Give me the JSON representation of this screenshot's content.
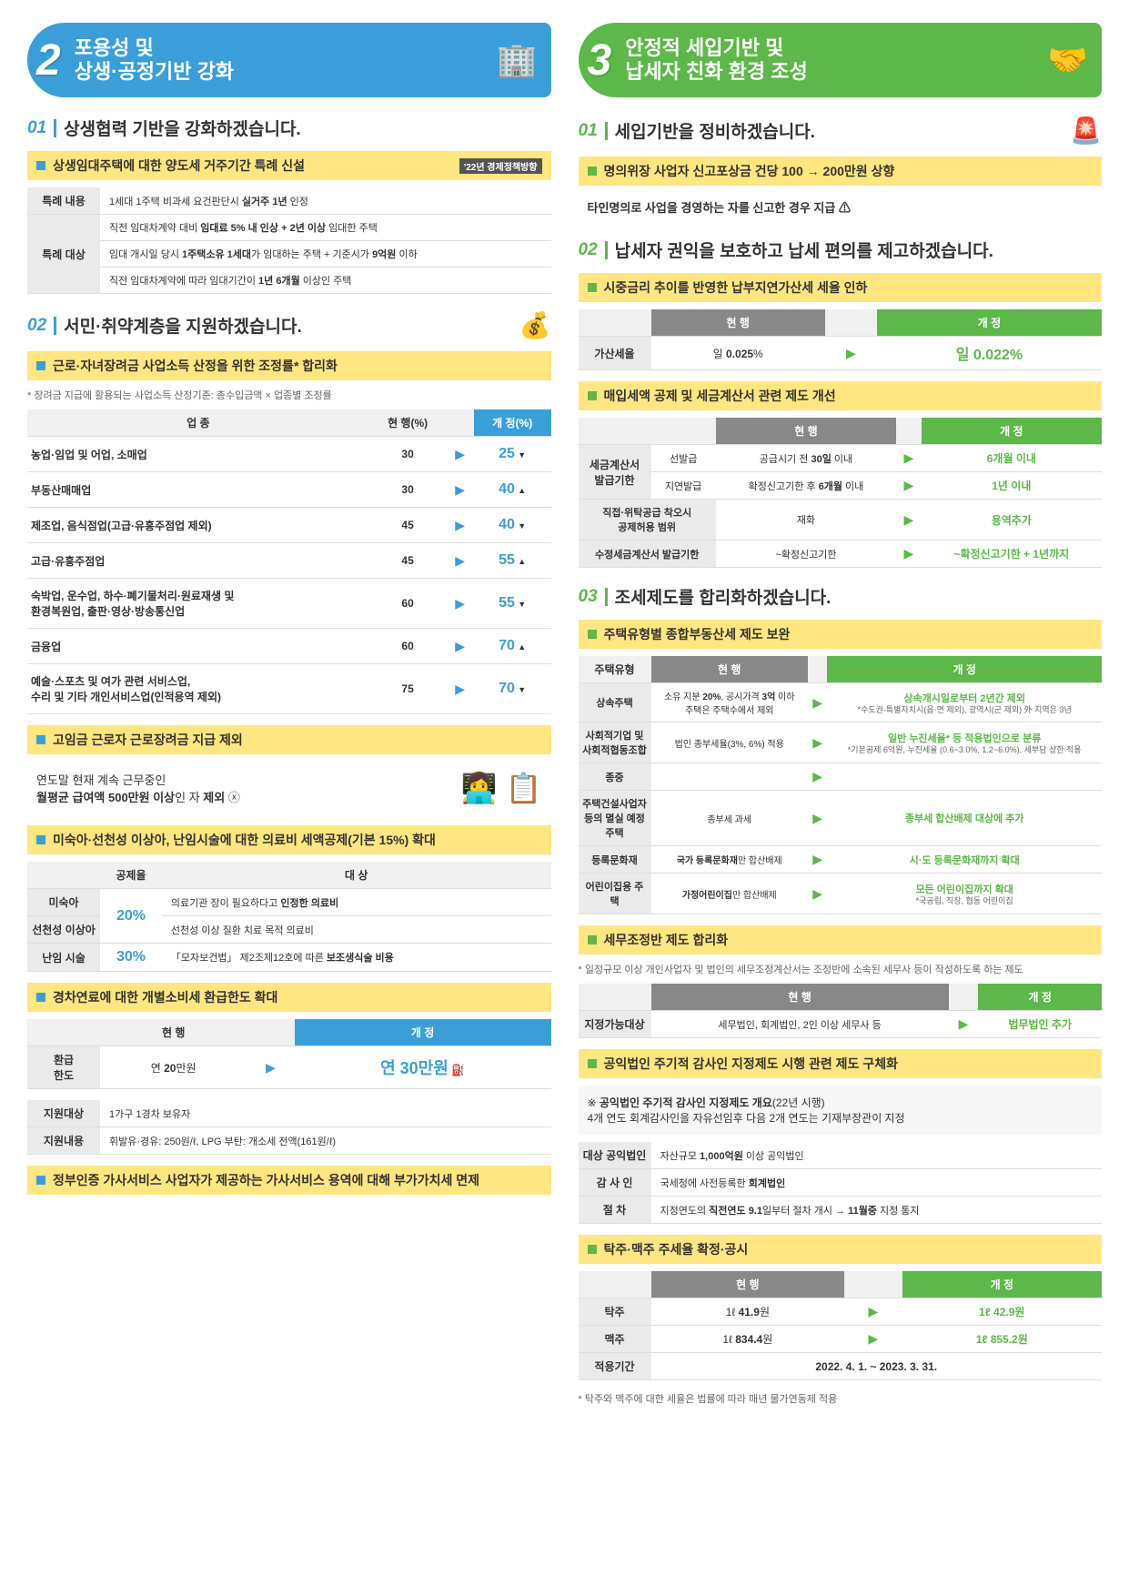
{
  "left": {
    "header": {
      "num": "2",
      "title": "포용성 및\n상생·공정기반 강화"
    },
    "s1": {
      "num": "01",
      "title": "상생협력 기반을 강화하겠습니다.",
      "bar": "상생임대주택에 대한 양도세 거주기간 특례 신설",
      "tag": "'22년 경제정책방향",
      "rows": [
        {
          "label": "특례 내용",
          "lines": [
            "1세대 1주택 비과세 요건판단시 <b>실거주 1년</b> 인정"
          ]
        },
        {
          "label": "특례 대상",
          "lines": [
            "직전 임대차계약 대비 <b>임대료 5% 내 인상 + 2년 이상</b> 임대한 주택",
            "임대 개시일 당시 <b>1주택소유 1세대</b>가 임대하는 주택 + 기준시가 <b>9억원</b> 이하",
            "직전 임대차계약에 따라 임대기간이 <b>1년 6개월</b> 이상인 주택"
          ]
        }
      ]
    },
    "s2": {
      "num": "02",
      "title": "서민·취약계층을 지원하겠습니다.",
      "bar1": "근로·자녀장려금 사업소득 산정을 위한 조정률* 합리화",
      "note1": "* 장려금 지급에 활용되는 사업소득 산정기준: 총수입금액 × 업종별 조정률",
      "rate_head": [
        "업 종",
        "현 행(%)",
        "",
        "개 정(%)"
      ],
      "rates": [
        {
          "name": "농업·임업 및 어업, 소매업",
          "cur": "30",
          "new": "25",
          "dir": "▼"
        },
        {
          "name": "부동산매매업",
          "cur": "30",
          "new": "40",
          "dir": "▲"
        },
        {
          "name": "제조업, 음식점업(고급·유흥주점업 제외)",
          "cur": "45",
          "new": "40",
          "dir": "▼"
        },
        {
          "name": "고급·유흥주점업",
          "cur": "45",
          "new": "55",
          "dir": "▲"
        },
        {
          "name": "숙박업, 운수업, 하수·폐기물처리·원료재생 및\n환경복원업, 출판·영상·방송통신업",
          "cur": "60",
          "new": "55",
          "dir": "▼"
        },
        {
          "name": "금융업",
          "cur": "60",
          "new": "70",
          "dir": "▲"
        },
        {
          "name": "예술·스포츠 및 여가 관련 서비스업,\n수리 및 기타 개인서비스업(인적용역 제외)",
          "cur": "75",
          "new": "70",
          "dir": "▼"
        }
      ],
      "bar2": "고임금 근로자 근로장려금 지급 제외",
      "exclude": "연도말 현재 계속 근무중인\n<b>월평균 급여액 500만원 이상</b>인 자 <b>제외</b> ⓧ",
      "bar3": "미숙아·선천성 이상아, 난임시술에 대한 의료비 세액공제(기본 15%) 확대",
      "med_head": [
        "",
        "공제율",
        "대 상"
      ],
      "med": [
        {
          "label": "미숙아",
          "rate": "20%",
          "span": true,
          "target": "의료기관 장이 필요하다고 <b>인정한 의료비</b>"
        },
        {
          "label": "선천성 이상아",
          "rate": "",
          "target": "선천성 이상 질환 치료 목적 의료비"
        },
        {
          "label": "난임 시술",
          "rate": "30%",
          "target": "「모자보건법」 제2조제12호에 따른 <b>보조생식술 비용</b>"
        }
      ],
      "bar4": "경차연료에 대한 개별소비세 환급한도 확대",
      "refund_head": [
        "",
        "현 행",
        "",
        "개 정"
      ],
      "refund": {
        "label": "환급\n한도",
        "cur": "연 <b>20</b>만원",
        "new": "연 <b>30</b>만원"
      },
      "support": [
        {
          "label": "지원대상",
          "text": "1가구 1경차 보유자"
        },
        {
          "label": "지원내용",
          "text": "휘발유·경유: 250원/ℓ, LPG 부탄: 개소세 전액(161원/ℓ)"
        }
      ],
      "bar5": "정부인증 가사서비스 사업자가 제공하는 가사서비스 용역에 대해 부가가치세 면제"
    }
  },
  "right": {
    "header": {
      "num": "3",
      "title": "안정적 세입기반 및\n납세자 친화 환경 조성"
    },
    "s1": {
      "num": "01",
      "title": "세입기반을 정비하겠습니다.",
      "bar": "명의위장 사업자 신고포상금 건당 100 → 200만원 상향",
      "sub": "타인명의로 사업을 경영하는 자를 신고한 경우 지급 ⚠"
    },
    "s2": {
      "num": "02",
      "title": "납세자 권익을 보호하고 납세 편의를 제고하겠습니다.",
      "bar1": "시중금리 추이를 반영한 납부지연가산세 세율 인하",
      "penalty_head": [
        "",
        "현 행",
        "",
        "개 정"
      ],
      "penalty": {
        "label": "가산세율",
        "cur": "일 <b>0.025</b>%",
        "new": "일 <b>0.022</b>%"
      },
      "bar2": "매입세액 공제 및 세금계산서 관련 제도 개선",
      "invoice_head": [
        "",
        "",
        "현 행",
        "",
        "개 정"
      ],
      "invoice": [
        {
          "g": "세금계산서\n발급기한",
          "l": "선발급",
          "cur": "공급시기 전 <b>30일</b> 이내",
          "new": "<b>6개월</b> 이내"
        },
        {
          "g": "",
          "l": "지연발급",
          "cur": "확정신고기한 후 <b>6개월</b> 이내",
          "new": "<b>1년</b> 이내"
        },
        {
          "g": "직접·위탁공급 착오시\n공제허용 범위",
          "l": "",
          "cur": "재화",
          "new": "<b>용역추가</b>"
        },
        {
          "g": "수정세금계산서 발급기한",
          "l": "",
          "cur": "~확정신고기한",
          "new": "<b>~확정신고기한 + 1년까지</b>"
        }
      ]
    },
    "s3": {
      "num": "03",
      "title": "조세제도를 합리화하겠습니다.",
      "bar1": "주택유형별 종합부동산세 제도 보완",
      "prop_head": [
        "주택유형",
        "현 행",
        "",
        "개 정"
      ],
      "prop": [
        {
          "t": "상속주택",
          "cur": "소유 지분 <b>20%</b>, 공시가격 <b>3억</b> 이하\n주택은 주택수에서 제외",
          "new": "<b>상속개시일로부터 2년간 제외</b>",
          "note": "*수도권·특별자치시(읍·면 제외),\n광역시(군 제외) 外 지역은 3년"
        },
        {
          "t": "사회적기업 및\n사회적협동조합",
          "cur": "법인 종부세율(3%, 6%) 적용",
          "new": "<b>일반 누진세율* 등 적용법인</b>으로 분류",
          "note": "*기본공제 6억원, 누진세율\n(0.6~3.0%, 1.2~6.0%), 세부담 상한 적용"
        },
        {
          "t": "종중",
          "cur": "",
          "new": "",
          "note": ""
        },
        {
          "t": "주택건설사업자\n등의 멸실 예정주택",
          "cur": "종부세 과세",
          "new": "<b>종부세 합산배제 대상에 추가</b>",
          "note": ""
        },
        {
          "t": "등록문화재",
          "cur": "<b>국가 등록문화재</b>만 합산배제",
          "new": "<b>시·도 등록문화재까지 확대</b>",
          "note": ""
        },
        {
          "t": "어린이집용 주택",
          "cur": "<b>가정어린이집</b>만 합산배제",
          "new": "<b>모든 어린이집까지 확대</b>",
          "note": "*국공립, 직장, 협동 어린이집"
        }
      ],
      "bar2": "세무조정반 제도 합리화",
      "note2": "* 일정규모 이상 개인사업자 및 법인의 세무조정계산서는 조정반에 소속된 세무사 등이 작성하도록 하는 제도",
      "adj_head": [
        "",
        "현 행",
        "",
        "개 정"
      ],
      "adj": {
        "label": "지정가능대상",
        "cur": "세무법인, 회계법인, 2인 이상 세무사 등",
        "new": "<b>법무법인 추가</b>"
      },
      "bar3": "공익법인 주기적 감사인 지정제도 시행 관련 제도 구체화",
      "audit_note": "※ <b>공익법인 주기적 감사인 지정제도 개요</b>(22년 시행)\n4개 연도 회계감사인을 자유선임후 다음 2개 연도는 기재부장관이 지정",
      "audit": [
        {
          "label": "대상 공익법인",
          "text": "자산규모 <b>1,000억원</b> 이상 공익법인"
        },
        {
          "label": "감 사 인",
          "text": "국세청에 사전등록한 <b>회계법인</b>"
        },
        {
          "label": "절 차",
          "text": "지정연도의 <b>직전연도 9.1</b>일부터 절차 개시 → <b>11월중</b> 지정 통지"
        }
      ],
      "bar4": "탁주·맥주 주세율 확정·공시",
      "tax_head": [
        "",
        "현 행",
        "",
        "개 정"
      ],
      "tax": [
        {
          "label": "탁주",
          "cur": "1ℓ <b>41.9</b>원",
          "new": "1ℓ <b>42.9</b>원"
        },
        {
          "label": "맥주",
          "cur": "1ℓ <b>834.4</b>원",
          "new": "1ℓ <b>855.2</b>원"
        },
        {
          "label": "적용기간",
          "cur": "",
          "new": "<b>2022. 4. 1. ~ 2023. 3. 31.</b>",
          "full": true
        }
      ],
      "tax_note": "* 탁주와 맥주에 대한 세율은 법률에 따라 매년 물가연동제 적용"
    }
  }
}
